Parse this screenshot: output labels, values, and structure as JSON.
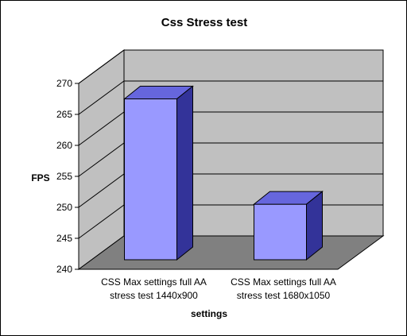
{
  "chart_data": {
    "type": "bar",
    "title": "Css Stress test",
    "xlabel": "settings",
    "ylabel": "FPS",
    "categories": [
      [
        "CSS Max settings full AA",
        "stress test 1440x900"
      ],
      [
        "CSS Max settings full AA",
        "stress test 1680x1050"
      ]
    ],
    "values": [
      267.5,
      250.5
    ],
    "ylim": [
      240,
      270
    ],
    "yticks": [
      240,
      245,
      250,
      255,
      260,
      265,
      270
    ],
    "grid": true,
    "legend": "none",
    "colors": {
      "bar_front": "#9999ff",
      "bar_top": "#6666dd",
      "bar_side": "#333399",
      "back_wall": "#c0c0c0",
      "side_wall": "#c0c0c0",
      "floor": "#808080"
    }
  }
}
